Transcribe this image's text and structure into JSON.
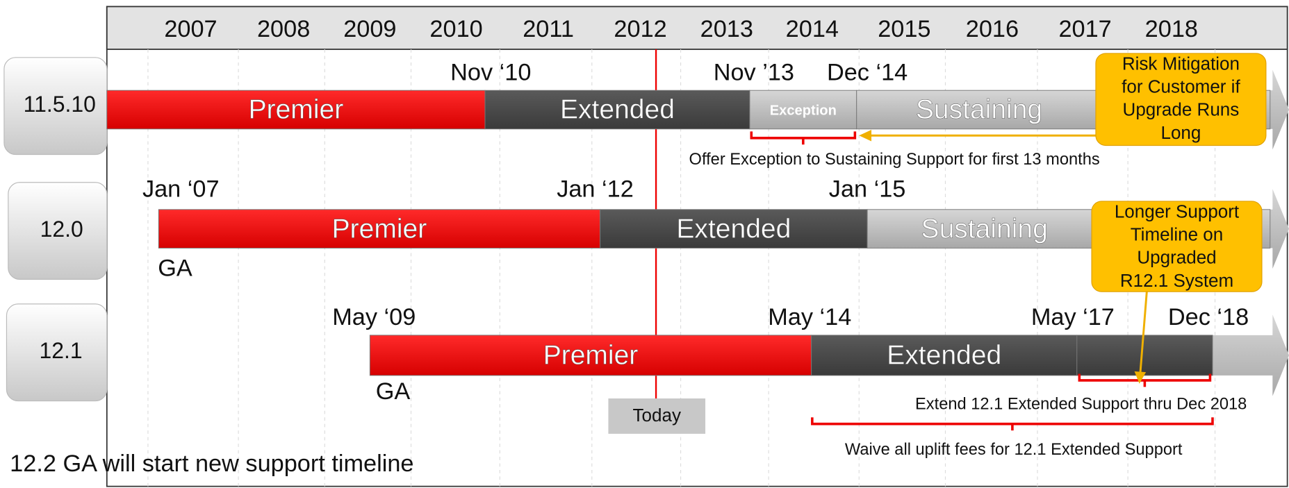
{
  "years": [
    "2007",
    "2008",
    "2009",
    "2010",
    "2011",
    "2012",
    "2013",
    "2014",
    "2015",
    "2016",
    "2017",
    "2018"
  ],
  "rows": [
    {
      "label": "11.5.10",
      "segments": [
        "Premier",
        "Extended",
        "Exception",
        "Sustaining"
      ],
      "dates": [
        "Nov ‘10",
        "Nov ’13",
        "Dec ‘14"
      ]
    },
    {
      "label": "12.0",
      "segments": [
        "Premier",
        "Extended",
        "Sustaining"
      ],
      "dates": [
        "Jan ‘07",
        "Jan ‘12",
        "Jan ‘15"
      ],
      "ga": "GA"
    },
    {
      "label": "12.1",
      "segments": [
        "Premier",
        "Extended",
        ""
      ],
      "dates": [
        "May ‘09",
        "May ‘14",
        "May ‘17",
        "Dec ‘18"
      ],
      "ga": "GA"
    }
  ],
  "annotations": [
    "Offer Exception to Sustaining Support for first 13 months",
    "Extend 12.1 Extended Support thru Dec 2018",
    "Waive all uplift fees for 12.1 Extended Support"
  ],
  "callouts": [
    [
      "Risk Mitigation",
      "for Customer if",
      "Upgrade Runs",
      "Long"
    ],
    [
      "Longer Support",
      "Timeline on",
      "Upgraded",
      "R12.1 System"
    ]
  ],
  "today": "Today",
  "footer": "12.2 GA will start new support timeline"
}
